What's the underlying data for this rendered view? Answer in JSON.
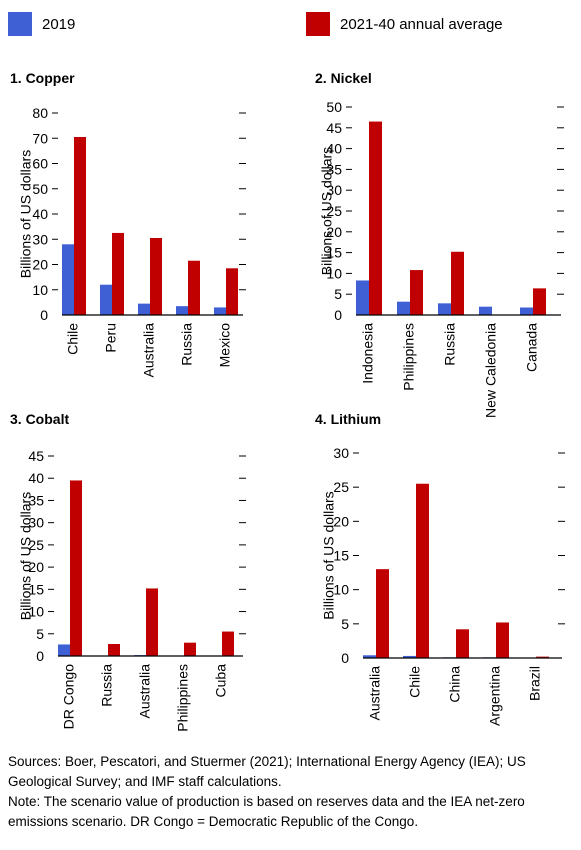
{
  "legend": {
    "items": [
      {
        "label": "2019",
        "color": "#3f5fd4"
      },
      {
        "label": "2021-40 annual average",
        "color": "#c00000"
      }
    ]
  },
  "chart_data": [
    {
      "type": "bar",
      "title": "1. Copper",
      "ylabel": "Billions of US dollars",
      "ylim": [
        0,
        80
      ],
      "yticks": [
        0,
        10,
        20,
        30,
        40,
        50,
        60,
        70,
        80
      ],
      "categories": [
        "Chile",
        "Peru",
        "Australia",
        "Russia",
        "Mexico"
      ],
      "series": [
        {
          "name": "2019",
          "values": [
            28,
            12,
            4.5,
            3.5,
            3
          ]
        },
        {
          "name": "2021-40 annual average",
          "values": [
            70.5,
            32.5,
            30.5,
            21.5,
            18.5
          ]
        }
      ]
    },
    {
      "type": "bar",
      "title": "2. Nickel",
      "ylabel": "Billions of US dollars",
      "ylim": [
        0,
        50
      ],
      "yticks": [
        0,
        5,
        10,
        15,
        20,
        25,
        30,
        35,
        40,
        45,
        50
      ],
      "categories": [
        "Indonesia",
        "Philippines",
        "Russia",
        "New Caledonia",
        "Canada"
      ],
      "series": [
        {
          "name": "2019",
          "values": [
            8.3,
            3.2,
            2.8,
            2,
            1.8
          ]
        },
        {
          "name": "2021-40 annual average",
          "values": [
            46.5,
            10.8,
            15.2,
            0,
            6.4
          ]
        }
      ]
    },
    {
      "type": "bar",
      "title": "3. Cobalt",
      "ylabel": "Billions of US dollars",
      "ylim": [
        0,
        45
      ],
      "yticks": [
        0,
        5,
        10,
        15,
        20,
        25,
        30,
        35,
        40,
        45
      ],
      "categories": [
        "DR Congo",
        "Russia",
        "Australia",
        "Philippines",
        "Cuba"
      ],
      "series": [
        {
          "name": "2019",
          "values": [
            2.6,
            0.1,
            0.2,
            0.1,
            0.1
          ]
        },
        {
          "name": "2021-40 annual average",
          "values": [
            39.5,
            2.7,
            15.2,
            3,
            5.5
          ]
        }
      ]
    },
    {
      "type": "bar",
      "title": "4. Lithium",
      "ylabel": "Billions of US dollars",
      "ylim": [
        0,
        30
      ],
      "yticks": [
        0,
        5,
        10,
        15,
        20,
        25,
        30
      ],
      "categories": [
        "Australia",
        "Chile",
        "China",
        "Argentina",
        "Brazil"
      ],
      "series": [
        {
          "name": "2019",
          "values": [
            0.4,
            0.3,
            0.1,
            0.1,
            0.05
          ]
        },
        {
          "name": "2021-40 annual average",
          "values": [
            13,
            25.5,
            4.2,
            5.2,
            0.2
          ]
        }
      ]
    }
  ],
  "notes": {
    "sources": "Sources: Boer, Pescatori, and Stuermer (2021); International Energy Agency (IEA); US Geological Survey; and IMF staff calculations.",
    "note": "Note: The scenario value of production is based on reserves data and the IEA net-zero emissions scenario. DR Congo = Democratic Republic of the Congo."
  }
}
